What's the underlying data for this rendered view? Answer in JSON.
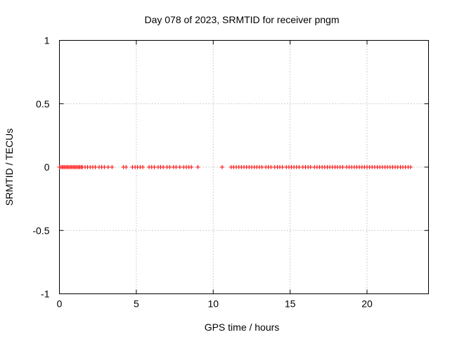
{
  "chart_data": {
    "type": "scatter",
    "title": "Day 078 of 2023, SRMTID for receiver pngm",
    "xlabel": "GPS time / hours",
    "ylabel": "SRMTID / TECUs",
    "xlim": [
      0,
      24
    ],
    "ylim": [
      -1,
      1
    ],
    "grid": true,
    "marker": "+",
    "x_ticks": [
      0,
      5,
      10,
      15,
      20
    ],
    "x_tick_labels": [
      "0",
      "5",
      "10",
      "15",
      "20"
    ],
    "y_ticks": [
      1,
      0.5,
      0,
      -0.5,
      -1
    ],
    "y_tick_labels": [
      "1",
      "0.5",
      "0",
      "-0.5",
      "-1"
    ],
    "series": [
      {
        "name": "SRMTID",
        "color": "#ff0000",
        "x": [
          0.0,
          0.08,
          0.17,
          0.25,
          0.33,
          0.42,
          0.5,
          0.58,
          0.67,
          0.75,
          0.83,
          0.92,
          1.0,
          1.08,
          1.17,
          1.25,
          1.33,
          1.42,
          1.5,
          1.67,
          1.83,
          2.0,
          2.17,
          2.33,
          2.58,
          2.75,
          2.92,
          3.17,
          3.42,
          4.17,
          4.33,
          4.75,
          4.92,
          5.08,
          5.25,
          5.42,
          5.83,
          6.0,
          6.17,
          6.42,
          6.58,
          6.75,
          7.0,
          7.17,
          7.42,
          7.58,
          7.83,
          8.08,
          8.25,
          8.42,
          8.58,
          9.0,
          10.58,
          11.17,
          11.33,
          11.5,
          11.67,
          11.83,
          12.0,
          12.17,
          12.33,
          12.5,
          12.67,
          12.83,
          13.0,
          13.17,
          13.42,
          13.58,
          13.75,
          14.0,
          14.17,
          14.33,
          14.5,
          14.75,
          14.92,
          15.08,
          15.25,
          15.42,
          15.58,
          15.83,
          16.0,
          16.17,
          16.33,
          16.58,
          16.75,
          16.92,
          17.08,
          17.25,
          17.42,
          17.58,
          17.75,
          17.92,
          18.08,
          18.25,
          18.42,
          18.67,
          18.83,
          19.0,
          19.17,
          19.33,
          19.5,
          19.67,
          19.83,
          20.0,
          20.17,
          20.33,
          20.5,
          20.67,
          20.83,
          21.0,
          21.17,
          21.33,
          21.5,
          21.67,
          21.83,
          22.0,
          22.17,
          22.33,
          22.5,
          22.67,
          22.83
        ],
        "y": [
          0,
          0,
          0,
          0,
          0,
          0,
          0,
          0,
          0,
          0,
          0,
          0,
          0,
          0,
          0,
          0,
          0,
          0,
          0,
          0,
          0,
          0,
          0,
          0,
          0,
          0,
          0,
          0,
          0,
          0,
          0,
          0,
          0,
          0,
          0,
          0,
          0,
          0,
          0,
          0,
          0,
          0,
          0,
          0,
          0,
          0,
          0,
          0,
          0,
          0,
          0,
          0,
          0,
          0,
          0,
          0,
          0,
          0,
          0,
          0,
          0,
          0,
          0,
          0,
          0,
          0,
          0,
          0,
          0,
          0,
          0,
          0,
          0,
          0,
          0,
          0,
          0,
          0,
          0,
          0,
          0,
          0,
          0,
          0,
          0,
          0,
          0,
          0,
          0,
          0,
          0,
          0,
          0,
          0,
          0,
          0,
          0,
          0,
          0,
          0,
          0,
          0,
          0,
          0,
          0,
          0,
          0,
          0,
          0,
          0,
          0,
          0,
          0,
          0,
          0,
          0,
          0,
          0,
          0,
          0,
          0
        ]
      }
    ]
  }
}
